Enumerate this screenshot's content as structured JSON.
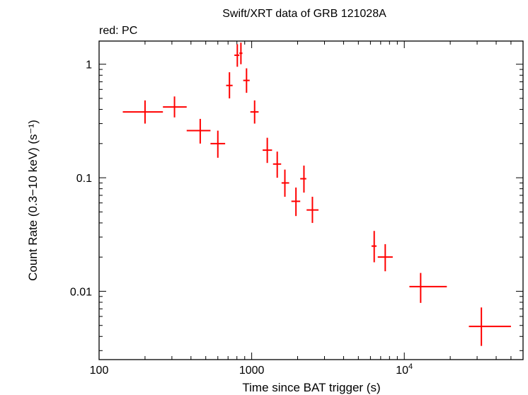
{
  "chart_data": {
    "type": "scatter",
    "title": "Swift/XRT data of GRB 121028A",
    "legend_note": "red: PC",
    "xlabel": "Time since BAT trigger (s)",
    "ylabel": "Count Rate (0.3−10 keV) (s⁻¹)",
    "xscale": "log",
    "yscale": "log",
    "xlim": [
      100,
      60000
    ],
    "ylim": [
      0.0025,
      1.6
    ],
    "x_ticks": [
      {
        "value": 100,
        "label": "100"
      },
      {
        "value": 1000,
        "label": "1000"
      },
      {
        "value": 10000,
        "label": "10⁴"
      }
    ],
    "y_ticks": [
      {
        "value": 0.01,
        "label": "0.01"
      },
      {
        "value": 0.1,
        "label": "0.1"
      },
      {
        "value": 1,
        "label": "1"
      }
    ],
    "series": [
      {
        "mode": "PC",
        "color": "#ff0000",
        "points": [
          {
            "t": 200,
            "t_lo": 143,
            "t_hi": 262,
            "rate": 0.38,
            "rate_lo": 0.3,
            "rate_hi": 0.48
          },
          {
            "t": 312,
            "t_lo": 262,
            "t_hi": 375,
            "rate": 0.42,
            "rate_lo": 0.34,
            "rate_hi": 0.52
          },
          {
            "t": 460,
            "t_lo": 375,
            "t_hi": 537,
            "rate": 0.26,
            "rate_lo": 0.2,
            "rate_hi": 0.33
          },
          {
            "t": 600,
            "t_lo": 537,
            "t_hi": 670,
            "rate": 0.2,
            "rate_lo": 0.15,
            "rate_hi": 0.26
          },
          {
            "t": 715,
            "t_lo": 680,
            "t_hi": 750,
            "rate": 0.65,
            "rate_lo": 0.5,
            "rate_hi": 0.85
          },
          {
            "t": 805,
            "t_lo": 770,
            "t_hi": 830,
            "rate": 1.2,
            "rate_lo": 0.95,
            "rate_hi": 1.5
          },
          {
            "t": 850,
            "t_lo": 830,
            "t_hi": 870,
            "rate": 1.25,
            "rate_lo": 1.0,
            "rate_hi": 1.55
          },
          {
            "t": 925,
            "t_lo": 880,
            "t_hi": 970,
            "rate": 0.72,
            "rate_lo": 0.56,
            "rate_hi": 0.92
          },
          {
            "t": 1045,
            "t_lo": 980,
            "t_hi": 1110,
            "rate": 0.38,
            "rate_lo": 0.3,
            "rate_hi": 0.48
          },
          {
            "t": 1265,
            "t_lo": 1180,
            "t_hi": 1360,
            "rate": 0.175,
            "rate_lo": 0.135,
            "rate_hi": 0.225
          },
          {
            "t": 1470,
            "t_lo": 1380,
            "t_hi": 1560,
            "rate": 0.132,
            "rate_lo": 0.1,
            "rate_hi": 0.17
          },
          {
            "t": 1650,
            "t_lo": 1570,
            "t_hi": 1760,
            "rate": 0.09,
            "rate_lo": 0.068,
            "rate_hi": 0.118
          },
          {
            "t": 1950,
            "t_lo": 1820,
            "t_hi": 2080,
            "rate": 0.062,
            "rate_lo": 0.046,
            "rate_hi": 0.082
          },
          {
            "t": 2200,
            "t_lo": 2080,
            "t_hi": 2280,
            "rate": 0.098,
            "rate_lo": 0.074,
            "rate_hi": 0.128
          },
          {
            "t": 2500,
            "t_lo": 2290,
            "t_hi": 2740,
            "rate": 0.052,
            "rate_lo": 0.04,
            "rate_hi": 0.068
          },
          {
            "t": 6350,
            "t_lo": 6100,
            "t_hi": 6580,
            "rate": 0.025,
            "rate_lo": 0.018,
            "rate_hi": 0.034
          },
          {
            "t": 7500,
            "t_lo": 6700,
            "t_hi": 8400,
            "rate": 0.02,
            "rate_lo": 0.015,
            "rate_hi": 0.026
          },
          {
            "t": 12800,
            "t_lo": 10800,
            "t_hi": 19000,
            "rate": 0.011,
            "rate_lo": 0.0079,
            "rate_hi": 0.0145
          },
          {
            "t": 32000,
            "t_lo": 26500,
            "t_hi": 50000,
            "rate": 0.0049,
            "rate_lo": 0.0033,
            "rate_hi": 0.0072
          }
        ]
      }
    ]
  }
}
